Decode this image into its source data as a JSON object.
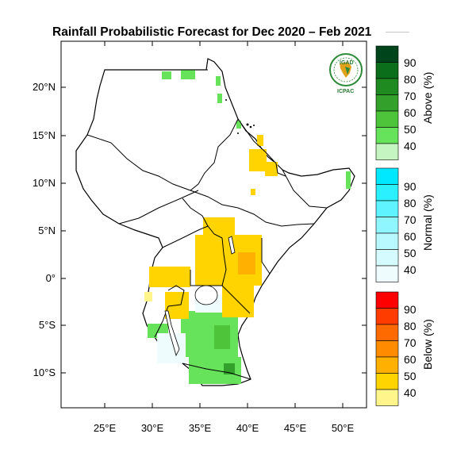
{
  "title": "Rainfall Probabilistic Forecast for Dec 2020 – Feb 2021",
  "latitude_labels": [
    "20°N",
    "15°N",
    "10°N",
    "5°N",
    "0°",
    "5°S",
    "10°S"
  ],
  "longitude_labels": [
    "25°E",
    "30°E",
    "35°E",
    "40°E",
    "45°E",
    "50°E"
  ],
  "logo": {
    "top_text": "IGAD",
    "bottom_text": "ICPAC",
    "colors": {
      "green": "#2e8b3a",
      "gold": "#e0a21a"
    }
  },
  "colorbars": [
    {
      "name": "above",
      "title": "Above (%)",
      "ticks": [
        "90",
        "80",
        "70",
        "60",
        "50",
        "40"
      ],
      "colors": [
        "#00441b",
        "#0b6e1a",
        "#1f8a1f",
        "#33a02c",
        "#4ec43b",
        "#66e35a",
        "#c5f5c0"
      ]
    },
    {
      "name": "normal",
      "title": "Normal (%)",
      "ticks": [
        "90",
        "80",
        "70",
        "60",
        "50",
        "40"
      ],
      "colors": [
        "#00e8ff",
        "#2af0ff",
        "#5ef3ff",
        "#8ff6ff",
        "#b8f9ff",
        "#d6fbff",
        "#eefcfd"
      ]
    },
    {
      "name": "below",
      "title": "Below (%)",
      "ticks": [
        "90",
        "80",
        "70",
        "60",
        "50",
        "40"
      ],
      "colors": [
        "#ff0000",
        "#ff3c00",
        "#ff6a00",
        "#ff8c00",
        "#ffb000",
        "#ffd400",
        "#fff58a"
      ]
    }
  ],
  "map_colors": {
    "above_40": "#c5f5c0",
    "above_50": "#66e35a",
    "above_60": "#4ec43b",
    "above_70": "#33a02c",
    "normal_40": "#eefcfd",
    "below_40": "#fff58a",
    "below_50": "#ffd400",
    "below_60": "#ffb000",
    "below_70": "#ff8c00",
    "border": "#000000"
  }
}
